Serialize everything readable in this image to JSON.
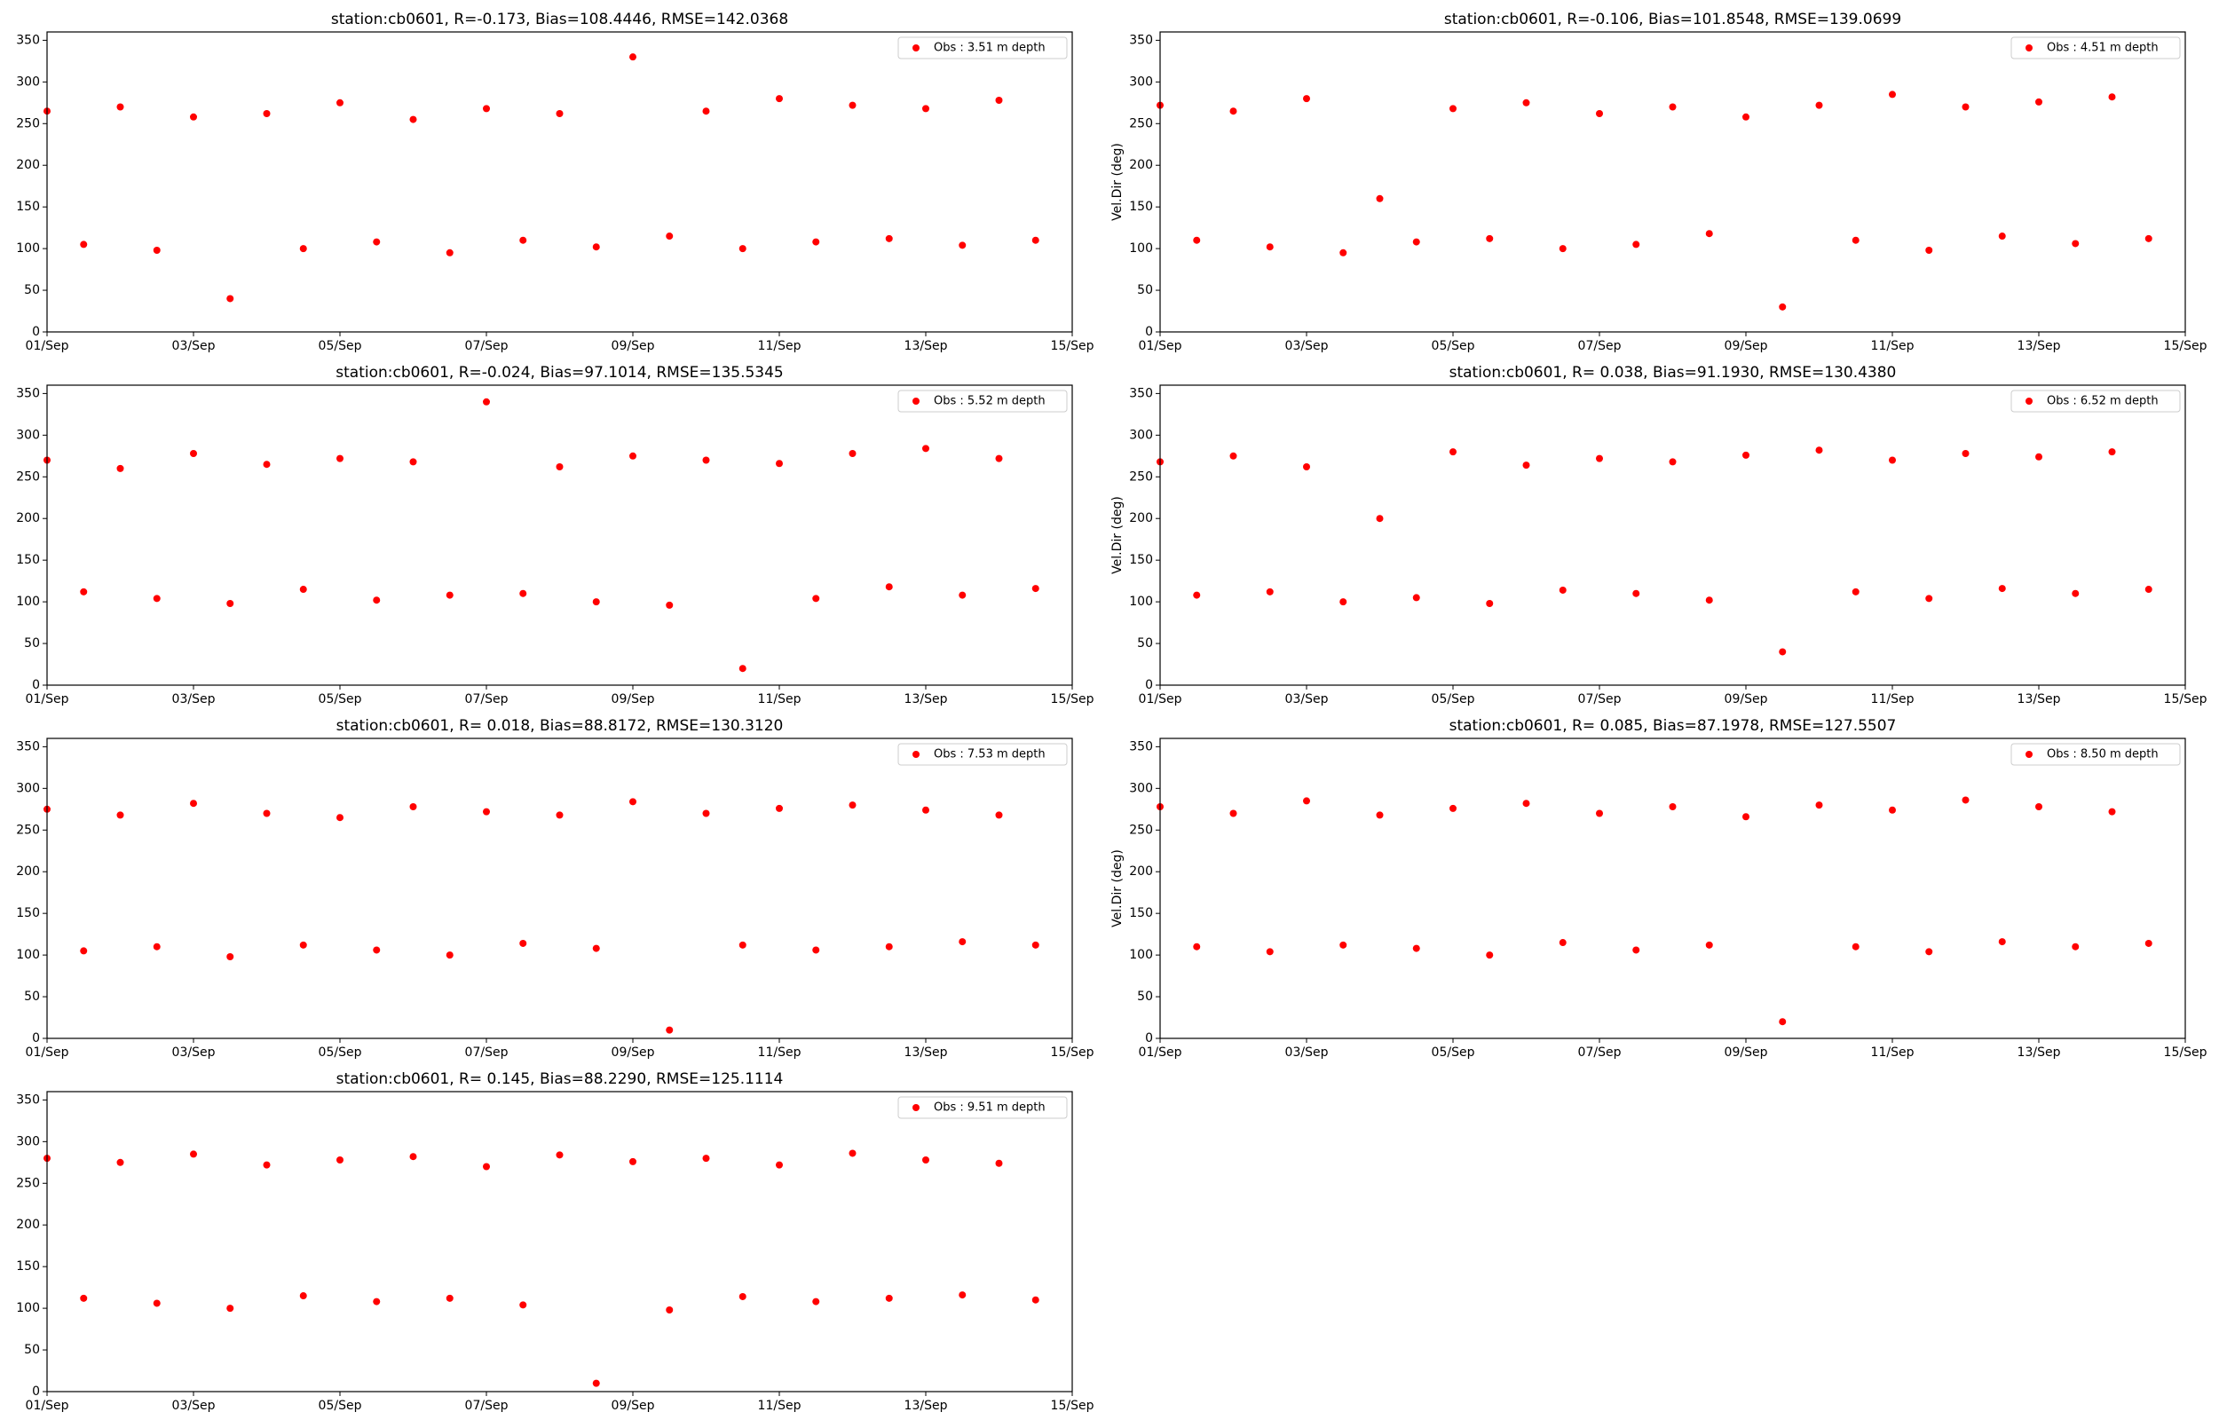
{
  "chart_data": [
    {
      "type": "scatter",
      "title": "station:cb0601, R=-0.173, Bias=108.4446, RMSE=142.0368",
      "x": [
        1,
        1.5,
        2,
        2.5,
        3,
        3.5,
        4,
        4.5,
        5,
        5.5,
        6,
        6.5,
        7,
        7.5,
        8,
        8.5,
        9,
        9.5,
        10,
        10.5,
        11,
        11.5,
        12,
        12.5,
        13,
        13.5,
        14,
        14.5
      ],
      "series": [
        {
          "name": "Obs : 3.51 m depth",
          "color": "#ff0000",
          "values": [
            265,
            105,
            270,
            98,
            258,
            40,
            262,
            100,
            275,
            108,
            255,
            95,
            268,
            110,
            262,
            102,
            330,
            115,
            265,
            100,
            280,
            108,
            272,
            112,
            268,
            104,
            278,
            110
          ]
        }
      ],
      "xlim": [
        1,
        15
      ],
      "ylim": [
        0,
        360
      ],
      "xticks": [
        {
          "value": 1,
          "label": "01/Sep"
        },
        {
          "value": 3,
          "label": "03/Sep"
        },
        {
          "value": 5,
          "label": "05/Sep"
        },
        {
          "value": 7,
          "label": "07/Sep"
        },
        {
          "value": 9,
          "label": "09/Sep"
        },
        {
          "value": 11,
          "label": "11/Sep"
        },
        {
          "value": 13,
          "label": "13/Sep"
        },
        {
          "value": 15,
          "label": "15/Sep"
        }
      ],
      "yticks": [
        0,
        50,
        100,
        150,
        200,
        250,
        300,
        350
      ],
      "legend": "upper right"
    },
    {
      "type": "scatter",
      "title": "station:cb0601, R=-0.106, Bias=101.8548, RMSE=139.0699",
      "ylabel": "Vel.Dir (deg)",
      "x": [
        1,
        1.5,
        2,
        2.5,
        3,
        3.5,
        4,
        4.5,
        5,
        5.5,
        6,
        6.5,
        7,
        7.5,
        8,
        8.5,
        9,
        9.5,
        10,
        10.5,
        11,
        11.5,
        12,
        12.5,
        13,
        13.5,
        14,
        14.5
      ],
      "series": [
        {
          "name": "Obs : 4.51 m depth",
          "color": "#ff0000",
          "values": [
            272,
            110,
            265,
            102,
            280,
            95,
            160,
            108,
            268,
            112,
            275,
            100,
            262,
            105,
            270,
            118,
            258,
            30,
            272,
            110,
            285,
            98,
            270,
            115,
            276,
            106,
            282,
            112
          ]
        }
      ],
      "xlim": [
        1,
        15
      ],
      "ylim": [
        0,
        360
      ],
      "xticks": [
        {
          "value": 1,
          "label": "01/Sep"
        },
        {
          "value": 3,
          "label": "03/Sep"
        },
        {
          "value": 5,
          "label": "05/Sep"
        },
        {
          "value": 7,
          "label": "07/Sep"
        },
        {
          "value": 9,
          "label": "09/Sep"
        },
        {
          "value": 11,
          "label": "11/Sep"
        },
        {
          "value": 13,
          "label": "13/Sep"
        },
        {
          "value": 15,
          "label": "15/Sep"
        }
      ],
      "yticks": [
        0,
        50,
        100,
        150,
        200,
        250,
        300,
        350
      ],
      "legend": "upper right"
    },
    {
      "type": "scatter",
      "title": "station:cb0601, R=-0.024, Bias=97.1014, RMSE=135.5345",
      "x": [
        1,
        1.5,
        2,
        2.5,
        3,
        3.5,
        4,
        4.5,
        5,
        5.5,
        6,
        6.5,
        7,
        7.5,
        8,
        8.5,
        9,
        9.5,
        10,
        10.5,
        11,
        11.5,
        12,
        12.5,
        13,
        13.5,
        14,
        14.5
      ],
      "series": [
        {
          "name": "Obs : 5.52 m depth",
          "color": "#ff0000",
          "values": [
            270,
            112,
            260,
            104,
            278,
            98,
            265,
            115,
            272,
            102,
            268,
            108,
            340,
            110,
            262,
            100,
            275,
            96,
            270,
            20,
            266,
            104,
            278,
            118,
            284,
            108,
            272,
            116
          ]
        }
      ],
      "xlim": [
        1,
        15
      ],
      "ylim": [
        0,
        360
      ],
      "xticks": [
        {
          "value": 1,
          "label": "01/Sep"
        },
        {
          "value": 3,
          "label": "03/Sep"
        },
        {
          "value": 5,
          "label": "05/Sep"
        },
        {
          "value": 7,
          "label": "07/Sep"
        },
        {
          "value": 9,
          "label": "09/Sep"
        },
        {
          "value": 11,
          "label": "11/Sep"
        },
        {
          "value": 13,
          "label": "13/Sep"
        },
        {
          "value": 15,
          "label": "15/Sep"
        }
      ],
      "yticks": [
        0,
        50,
        100,
        150,
        200,
        250,
        300,
        350
      ],
      "legend": "upper right"
    },
    {
      "type": "scatter",
      "title": "station:cb0601, R= 0.038, Bias=91.1930, RMSE=130.4380",
      "ylabel": "Vel.Dir (deg)",
      "x": [
        1,
        1.5,
        2,
        2.5,
        3,
        3.5,
        4,
        4.5,
        5,
        5.5,
        6,
        6.5,
        7,
        7.5,
        8,
        8.5,
        9,
        9.5,
        10,
        10.5,
        11,
        11.5,
        12,
        12.5,
        13,
        13.5,
        14,
        14.5
      ],
      "series": [
        {
          "name": "Obs : 6.52 m depth",
          "color": "#ff0000",
          "values": [
            268,
            108,
            275,
            112,
            262,
            100,
            200,
            105,
            280,
            98,
            264,
            114,
            272,
            110,
            268,
            102,
            276,
            40,
            282,
            112,
            270,
            104,
            278,
            116,
            274,
            110,
            280,
            115
          ]
        }
      ],
      "xlim": [
        1,
        15
      ],
      "ylim": [
        0,
        360
      ],
      "xticks": [
        {
          "value": 1,
          "label": "01/Sep"
        },
        {
          "value": 3,
          "label": "03/Sep"
        },
        {
          "value": 5,
          "label": "05/Sep"
        },
        {
          "value": 7,
          "label": "07/Sep"
        },
        {
          "value": 9,
          "label": "09/Sep"
        },
        {
          "value": 11,
          "label": "11/Sep"
        },
        {
          "value": 13,
          "label": "13/Sep"
        },
        {
          "value": 15,
          "label": "15/Sep"
        }
      ],
      "yticks": [
        0,
        50,
        100,
        150,
        200,
        250,
        300,
        350
      ],
      "legend": "upper right"
    },
    {
      "type": "scatter",
      "title": "station:cb0601, R= 0.018, Bias=88.8172, RMSE=130.3120",
      "x": [
        1,
        1.5,
        2,
        2.5,
        3,
        3.5,
        4,
        4.5,
        5,
        5.5,
        6,
        6.5,
        7,
        7.5,
        8,
        8.5,
        9,
        9.5,
        10,
        10.5,
        11,
        11.5,
        12,
        12.5,
        13,
        13.5,
        14,
        14.5
      ],
      "series": [
        {
          "name": "Obs : 7.53 m depth",
          "color": "#ff0000",
          "values": [
            275,
            105,
            268,
            110,
            282,
            98,
            270,
            112,
            265,
            106,
            278,
            100,
            272,
            114,
            268,
            108,
            284,
            10,
            270,
            112,
            276,
            106,
            280,
            110,
            274,
            116,
            268,
            112
          ]
        }
      ],
      "xlim": [
        1,
        15
      ],
      "ylim": [
        0,
        360
      ],
      "xticks": [
        {
          "value": 1,
          "label": "01/Sep"
        },
        {
          "value": 3,
          "label": "03/Sep"
        },
        {
          "value": 5,
          "label": "05/Sep"
        },
        {
          "value": 7,
          "label": "07/Sep"
        },
        {
          "value": 9,
          "label": "09/Sep"
        },
        {
          "value": 11,
          "label": "11/Sep"
        },
        {
          "value": 13,
          "label": "13/Sep"
        },
        {
          "value": 15,
          "label": "15/Sep"
        }
      ],
      "yticks": [
        0,
        50,
        100,
        150,
        200,
        250,
        300,
        350
      ],
      "legend": "upper right"
    },
    {
      "type": "scatter",
      "title": "station:cb0601, R= 0.085, Bias=87.1978, RMSE=127.5507",
      "ylabel": "Vel.Dir (deg)",
      "x": [
        1,
        1.5,
        2,
        2.5,
        3,
        3.5,
        4,
        4.5,
        5,
        5.5,
        6,
        6.5,
        7,
        7.5,
        8,
        8.5,
        9,
        9.5,
        10,
        10.5,
        11,
        11.5,
        12,
        12.5,
        13,
        13.5,
        14,
        14.5
      ],
      "series": [
        {
          "name": "Obs : 8.50 m depth",
          "color": "#ff0000",
          "values": [
            278,
            110,
            270,
            104,
            285,
            112,
            268,
            108,
            276,
            100,
            282,
            115,
            270,
            106,
            278,
            112,
            266,
            20,
            280,
            110,
            274,
            104,
            286,
            116,
            278,
            110,
            272,
            114
          ]
        }
      ],
      "xlim": [
        1,
        15
      ],
      "ylim": [
        0,
        360
      ],
      "xticks": [
        {
          "value": 1,
          "label": "01/Sep"
        },
        {
          "value": 3,
          "label": "03/Sep"
        },
        {
          "value": 5,
          "label": "05/Sep"
        },
        {
          "value": 7,
          "label": "07/Sep"
        },
        {
          "value": 9,
          "label": "09/Sep"
        },
        {
          "value": 11,
          "label": "11/Sep"
        },
        {
          "value": 13,
          "label": "13/Sep"
        },
        {
          "value": 15,
          "label": "15/Sep"
        }
      ],
      "yticks": [
        0,
        50,
        100,
        150,
        200,
        250,
        300,
        350
      ],
      "legend": "upper right"
    },
    {
      "type": "scatter",
      "title": "station:cb0601, R= 0.145, Bias=88.2290, RMSE=125.1114",
      "x": [
        1,
        1.5,
        2,
        2.5,
        3,
        3.5,
        4,
        4.5,
        5,
        5.5,
        6,
        6.5,
        7,
        7.5,
        8,
        8.5,
        9,
        9.5,
        10,
        10.5,
        11,
        11.5,
        12,
        12.5,
        13,
        13.5,
        14,
        14.5
      ],
      "series": [
        {
          "name": "Obs : 9.51 m depth",
          "color": "#ff0000",
          "values": [
            280,
            112,
            275,
            106,
            285,
            100,
            272,
            115,
            278,
            108,
            282,
            112,
            270,
            104,
            284,
            10,
            276,
            98,
            280,
            114,
            272,
            108,
            286,
            112,
            278,
            116,
            274,
            110
          ]
        }
      ],
      "xlim": [
        1,
        15
      ],
      "ylim": [
        0,
        360
      ],
      "xticks": [
        {
          "value": 1,
          "label": "01/Sep"
        },
        {
          "value": 3,
          "label": "03/Sep"
        },
        {
          "value": 5,
          "label": "05/Sep"
        },
        {
          "value": 7,
          "label": "07/Sep"
        },
        {
          "value": 9,
          "label": "09/Sep"
        },
        {
          "value": 11,
          "label": "11/Sep"
        },
        {
          "value": 13,
          "label": "13/Sep"
        },
        {
          "value": 15,
          "label": "15/Sep"
        }
      ],
      "yticks": [
        0,
        50,
        100,
        150,
        200,
        250,
        300,
        350
      ],
      "legend": "upper right"
    }
  ]
}
